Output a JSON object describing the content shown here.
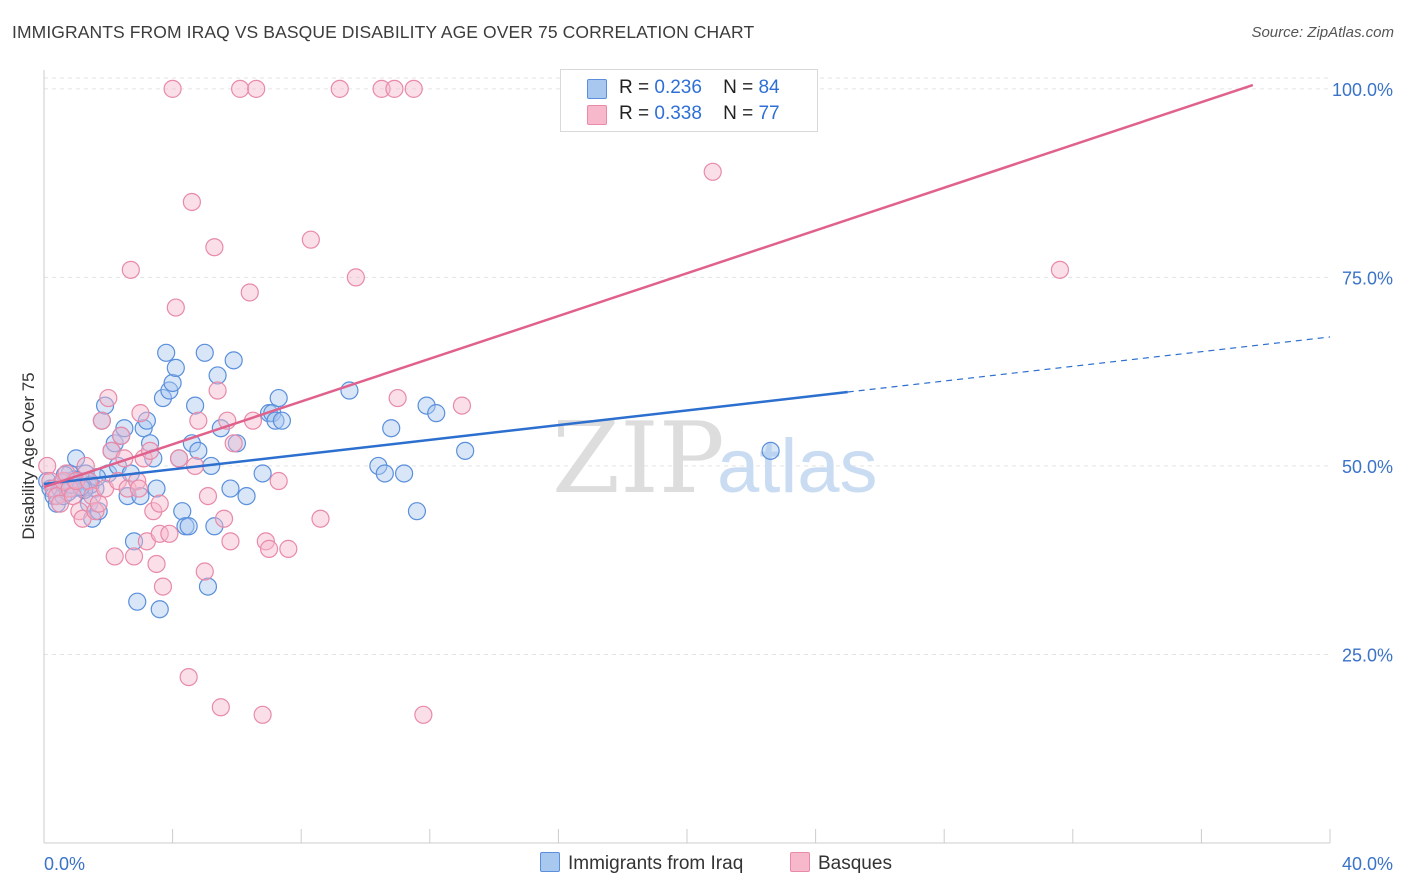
{
  "title": "IMMIGRANTS FROM IRAQ VS BASQUE DISABILITY AGE OVER 75 CORRELATION CHART",
  "source": "Source: ZipAtlas.com",
  "watermark": {
    "zip": "ZIP",
    "atlas": "atlas"
  },
  "colors": {
    "blue_fill": "#a8c8f0",
    "blue_stroke": "#5a8fdc",
    "blue_line": "#2c6fcf",
    "pink_fill": "#f7b8cc",
    "pink_stroke": "#e88aa8",
    "pink_line": "#e0628c",
    "axis_text": "#3a73c8",
    "grid": "#e3e3e3"
  },
  "legend": {
    "r_label": "R =",
    "n_label": "N =",
    "rows": [
      {
        "r": "0.236",
        "n": "84",
        "color": "#a8c8f0",
        "border": "#5a8fdc"
      },
      {
        "r": "0.338",
        "n": "77",
        "color": "#f7b8cc",
        "border": "#e88aa8"
      }
    ]
  },
  "bottom_legend": [
    {
      "label": "Immigrants from Iraq",
      "color": "#a8c8f0",
      "border": "#5a8fdc"
    },
    {
      "label": "Basques",
      "color": "#f7b8cc",
      "border": "#e88aa8"
    }
  ],
  "chart_data": {
    "type": "scatter",
    "title": "IMMIGRANTS FROM IRAQ VS BASQUE DISABILITY AGE OVER 75 CORRELATION CHART",
    "xlabel": "",
    "ylabel": "Disability Age Over 75",
    "xlim": [
      0,
      40
    ],
    "ylim": [
      0,
      102.5
    ],
    "x_tick_labels": [
      "0.0%",
      "40.0%"
    ],
    "y_ticks": [
      25,
      50,
      75,
      100
    ],
    "y_tick_labels": [
      "25.0%",
      "50.0%",
      "75.0%",
      "100.0%"
    ],
    "grid": true,
    "series": [
      {
        "name": "Immigrants from Iraq",
        "r": 0.236,
        "n": 84,
        "trend": {
          "x0": 0,
          "y0": 47.6,
          "x1": 25,
          "y1": 59.8,
          "dash_to_x": 40,
          "dash_to_y": 67.1
        },
        "points": [
          [
            0.1,
            48
          ],
          [
            0.2,
            47
          ],
          [
            0.3,
            46
          ],
          [
            0.4,
            45
          ],
          [
            0.5,
            47
          ],
          [
            0.6,
            46
          ],
          [
            0.7,
            48
          ],
          [
            0.8,
            49
          ],
          [
            0.9,
            47
          ],
          [
            1.0,
            51
          ],
          [
            1.1,
            48
          ],
          [
            1.2,
            47
          ],
          [
            1.3,
            49
          ],
          [
            1.4,
            45
          ],
          [
            1.5,
            43
          ],
          [
            1.6,
            47
          ],
          [
            1.7,
            44
          ],
          [
            1.8,
            56
          ],
          [
            1.9,
            58
          ],
          [
            2.0,
            49
          ],
          [
            2.1,
            52
          ],
          [
            2.2,
            53
          ],
          [
            2.3,
            50
          ],
          [
            2.4,
            54
          ],
          [
            2.5,
            55
          ],
          [
            2.6,
            46
          ],
          [
            2.7,
            49
          ],
          [
            2.8,
            40
          ],
          [
            2.9,
            32
          ],
          [
            3.0,
            46
          ],
          [
            3.1,
            55
          ],
          [
            3.2,
            56
          ],
          [
            3.3,
            53
          ],
          [
            3.4,
            51
          ],
          [
            3.5,
            47
          ],
          [
            3.6,
            31
          ],
          [
            3.7,
            59
          ],
          [
            3.8,
            65
          ],
          [
            3.9,
            60
          ],
          [
            4.0,
            61
          ],
          [
            4.1,
            63
          ],
          [
            4.2,
            51
          ],
          [
            4.3,
            44
          ],
          [
            4.4,
            42
          ],
          [
            4.5,
            42
          ],
          [
            4.6,
            53
          ],
          [
            4.7,
            58
          ],
          [
            4.8,
            52
          ],
          [
            5.0,
            65
          ],
          [
            5.1,
            34
          ],
          [
            5.2,
            50
          ],
          [
            5.3,
            42
          ],
          [
            5.4,
            62
          ],
          [
            5.5,
            55
          ],
          [
            5.8,
            47
          ],
          [
            5.9,
            64
          ],
          [
            6.0,
            53
          ],
          [
            6.3,
            46
          ],
          [
            6.8,
            49
          ],
          [
            7.0,
            57
          ],
          [
            7.1,
            57
          ],
          [
            7.2,
            56
          ],
          [
            7.3,
            59
          ],
          [
            7.4,
            56
          ],
          [
            9.5,
            60
          ],
          [
            10.4,
            50
          ],
          [
            10.6,
            49
          ],
          [
            10.8,
            55
          ],
          [
            11.2,
            49
          ],
          [
            11.6,
            44
          ],
          [
            11.9,
            58
          ],
          [
            12.2,
            57
          ],
          [
            13.1,
            52
          ],
          [
            22.6,
            52
          ],
          [
            1.35,
            48
          ],
          [
            1.45,
            47.5
          ],
          [
            1.65,
            48.5
          ],
          [
            0.75,
            46.5
          ],
          [
            0.85,
            47.5
          ],
          [
            0.55,
            47.8
          ],
          [
            0.95,
            48.2
          ],
          [
            1.25,
            46.8
          ],
          [
            1.15,
            47.2
          ],
          [
            0.65,
            48.8
          ]
        ]
      },
      {
        "name": "Basques",
        "r": 0.338,
        "n": 77,
        "trend": {
          "x0": 0,
          "y0": 47.2,
          "x1": 37.6,
          "y1": 100.5
        },
        "points": [
          [
            0.1,
            50
          ],
          [
            0.2,
            48
          ],
          [
            0.3,
            47
          ],
          [
            0.4,
            46
          ],
          [
            0.5,
            45
          ],
          [
            0.6,
            48
          ],
          [
            0.7,
            49
          ],
          [
            0.8,
            47
          ],
          [
            0.9,
            46
          ],
          [
            1.0,
            48
          ],
          [
            1.1,
            44
          ],
          [
            1.2,
            43
          ],
          [
            1.3,
            50
          ],
          [
            1.4,
            48
          ],
          [
            1.5,
            46
          ],
          [
            1.6,
            44
          ],
          [
            1.7,
            45
          ],
          [
            1.8,
            56
          ],
          [
            1.9,
            47
          ],
          [
            2.0,
            59
          ],
          [
            2.1,
            52
          ],
          [
            2.2,
            38
          ],
          [
            2.3,
            48
          ],
          [
            2.4,
            54
          ],
          [
            2.5,
            51
          ],
          [
            2.6,
            47
          ],
          [
            2.7,
            76
          ],
          [
            2.8,
            38
          ],
          [
            2.9,
            48
          ],
          [
            3.0,
            57
          ],
          [
            3.1,
            51
          ],
          [
            3.2,
            40
          ],
          [
            3.3,
            52
          ],
          [
            3.4,
            44
          ],
          [
            3.5,
            37
          ],
          [
            3.6,
            41
          ],
          [
            3.7,
            34
          ],
          [
            3.9,
            41
          ],
          [
            4.0,
            100
          ],
          [
            4.1,
            71
          ],
          [
            4.2,
            51
          ],
          [
            4.5,
            22
          ],
          [
            4.6,
            85
          ],
          [
            4.7,
            50
          ],
          [
            4.8,
            56
          ],
          [
            5.0,
            36
          ],
          [
            5.1,
            46
          ],
          [
            5.3,
            79
          ],
          [
            5.4,
            60
          ],
          [
            5.5,
            18
          ],
          [
            5.6,
            43
          ],
          [
            5.7,
            56
          ],
          [
            5.8,
            40
          ],
          [
            5.9,
            53
          ],
          [
            6.1,
            100
          ],
          [
            6.4,
            73
          ],
          [
            6.5,
            56
          ],
          [
            6.6,
            100
          ],
          [
            6.8,
            17
          ],
          [
            6.9,
            40
          ],
          [
            7.0,
            39
          ],
          [
            7.3,
            48
          ],
          [
            7.6,
            39
          ],
          [
            8.3,
            80
          ],
          [
            8.6,
            43
          ],
          [
            9.2,
            100
          ],
          [
            9.7,
            75
          ],
          [
            10.5,
            100
          ],
          [
            10.9,
            100
          ],
          [
            11.0,
            59
          ],
          [
            11.5,
            100
          ],
          [
            11.8,
            17
          ],
          [
            13.0,
            58
          ],
          [
            20.8,
            89
          ],
          [
            31.6,
            76
          ],
          [
            3.6,
            45
          ],
          [
            2.95,
            47
          ]
        ]
      }
    ]
  }
}
